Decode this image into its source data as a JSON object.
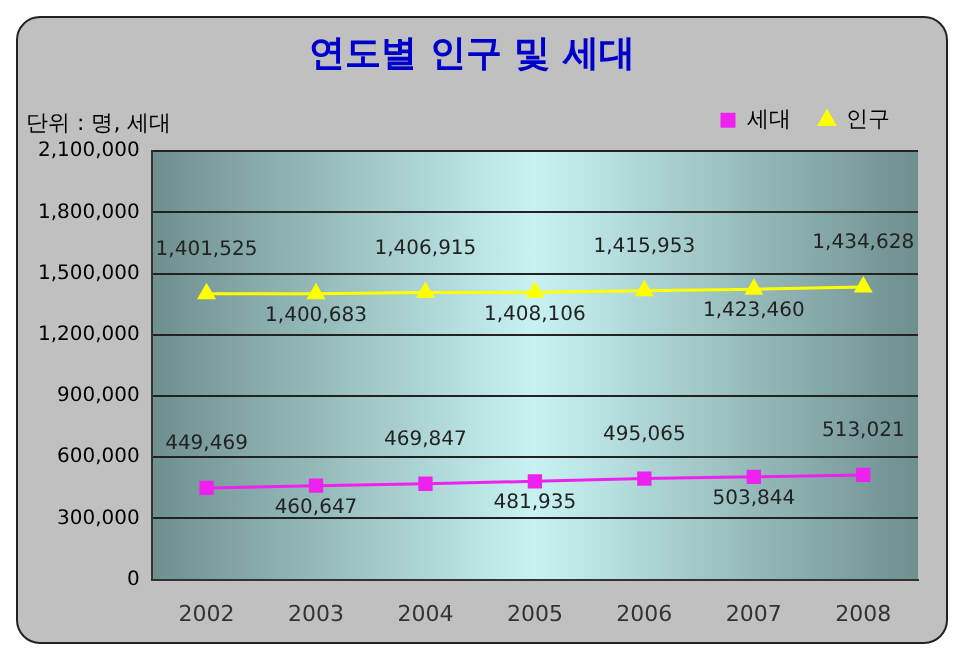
{
  "chart_data": {
    "type": "line",
    "title": "연도별 인구 및 세대",
    "categories": [
      "2002",
      "2003",
      "2004",
      "2005",
      "2006",
      "2007",
      "2008"
    ],
    "series": [
      {
        "name": "세대",
        "color": "#ee22ee",
        "marker": "square",
        "values": [
          449469,
          460647,
          469847,
          481935,
          495065,
          503844,
          513021
        ],
        "value_labels": [
          "449,469",
          "460,647",
          "469,847",
          "481,935",
          "495,065",
          "503,844",
          "513,021"
        ]
      },
      {
        "name": "인구",
        "color": "#ffff00",
        "marker": "triangle",
        "values": [
          1401525,
          1400683,
          1406915,
          1408106,
          1415953,
          1423460,
          1434628
        ],
        "value_labels": [
          "1,401,525",
          "1,400,683",
          "1,406,915",
          "1,408,106",
          "1,415,953",
          "1,423,460",
          "1,434,628"
        ]
      }
    ],
    "ylim": [
      0,
      2100000
    ],
    "yticks": [
      0,
      {
        "value": 300000,
        "label": "300,000"
      },
      {
        "value": 600000,
        "label": "600,000"
      },
      {
        "value": 900000,
        "label": "900,000"
      },
      {
        "value": 1200000,
        "label": "1,200,000"
      },
      {
        "value": 1500000,
        "label": "1,500,000"
      },
      {
        "value": 1800000,
        "label": "1,800,000"
      },
      {
        "value": 2100000,
        "label": "2,100,000"
      }
    ],
    "grid": "y",
    "legend": "top right",
    "line_style": "solid",
    "annotations": [
      "단위 : 명, 세대"
    ]
  }
}
